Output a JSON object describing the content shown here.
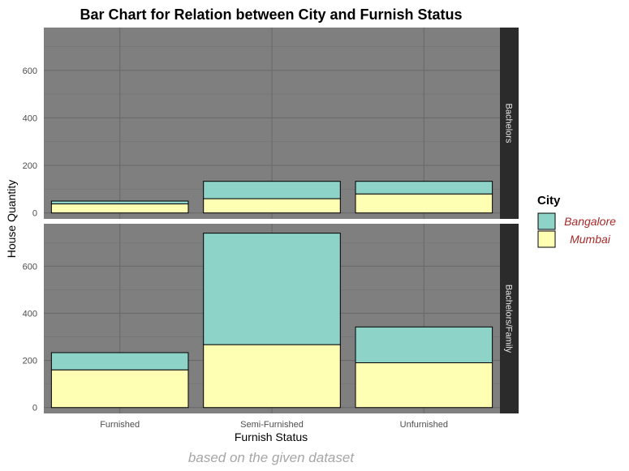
{
  "chart_data": {
    "type": "bar",
    "stacked": true,
    "title": "Bar Chart for Relation between City and  Furnish Status",
    "xlabel": "Furnish Status",
    "ylabel": "House Quantity",
    "caption": "based on the given dataset",
    "categories": [
      "Furnished",
      "Semi-Furnished",
      "Unfurnished"
    ],
    "ylim": [
      -25,
      780
    ],
    "yticks": [
      0,
      200,
      400,
      600
    ],
    "grid": true,
    "legend": {
      "title": "City",
      "position": "right",
      "entries": [
        "Bangalore",
        "Mumbai"
      ]
    },
    "colors": {
      "Bangalore": "#8ed3c7",
      "Mumbai": "#ffffb3",
      "panel": "#7f7f7f",
      "strip": "#2b2b2b"
    },
    "facets": [
      {
        "label": "Bachelors",
        "series": [
          {
            "name": "Mumbai",
            "values": [
              38,
              60,
              80
            ]
          },
          {
            "name": "Bangalore",
            "values": [
              12,
              73,
              53
            ]
          }
        ]
      },
      {
        "label": "Bachelors/Family",
        "series": [
          {
            "name": "Mumbai",
            "values": [
              160,
              267,
              190
            ]
          },
          {
            "name": "Bangalore",
            "values": [
              73,
              473,
              152
            ]
          }
        ]
      }
    ]
  }
}
